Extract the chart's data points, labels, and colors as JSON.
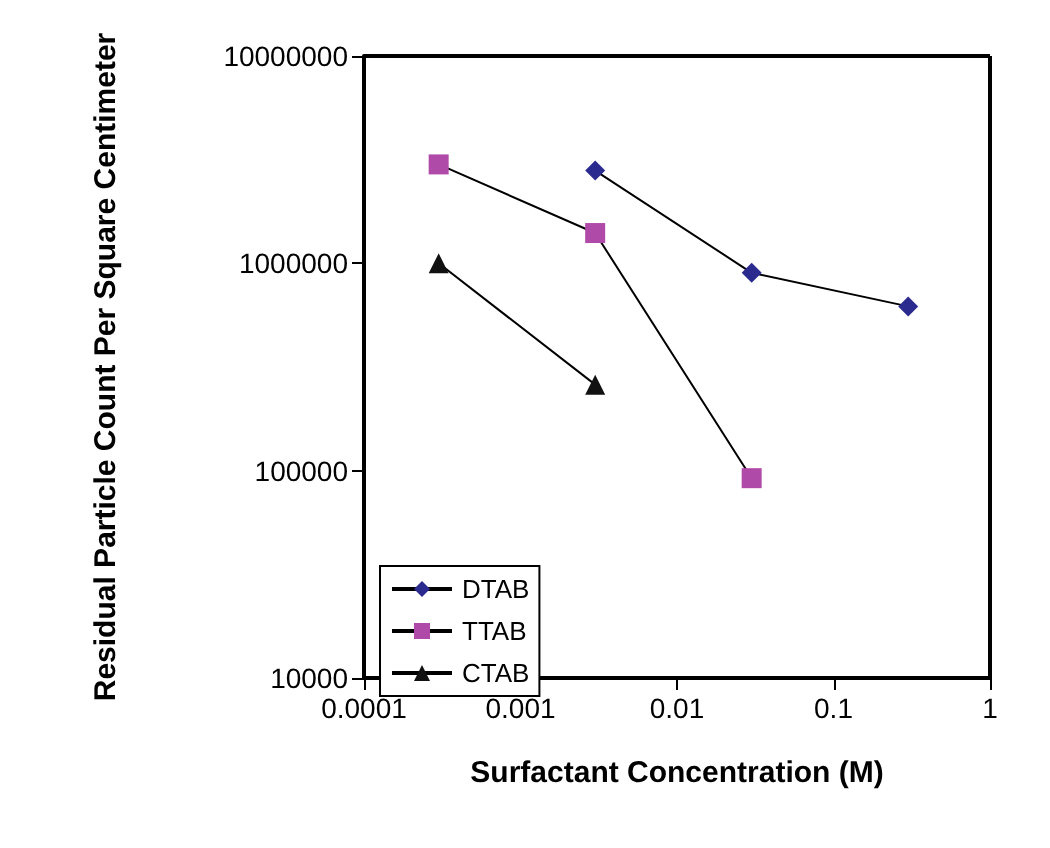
{
  "chart_data": {
    "type": "line",
    "xlabel": "Surfactant Concentration (M)",
    "ylabel": "Residual Particle Count Per Square Centimeter",
    "log": "xy",
    "xlim": [
      0.0001,
      1
    ],
    "xticks": [
      0.0001,
      0.001,
      0.01,
      0.1,
      1
    ],
    "ylim": [
      10000,
      10000000
    ],
    "yticks": [
      10000,
      100000,
      1000000,
      10000000
    ],
    "legend": "bottom left",
    "grid": false,
    "series": [
      {
        "name": "DTAB",
        "color": "#2b2b8f",
        "marker": "diamond",
        "x": [
          0.003,
          0.03,
          0.3
        ],
        "values": [
          2800000,
          900000,
          620000
        ]
      },
      {
        "name": "TTAB",
        "color": "#b04aa8",
        "marker": "square",
        "x": [
          0.0003,
          0.003,
          0.03
        ],
        "values": [
          3000000,
          1400000,
          92000
        ]
      },
      {
        "name": "CTAB",
        "color": "#111111",
        "marker": "triangle",
        "x": [
          0.0003,
          0.003
        ],
        "values": [
          1000000,
          260000
        ]
      }
    ]
  }
}
